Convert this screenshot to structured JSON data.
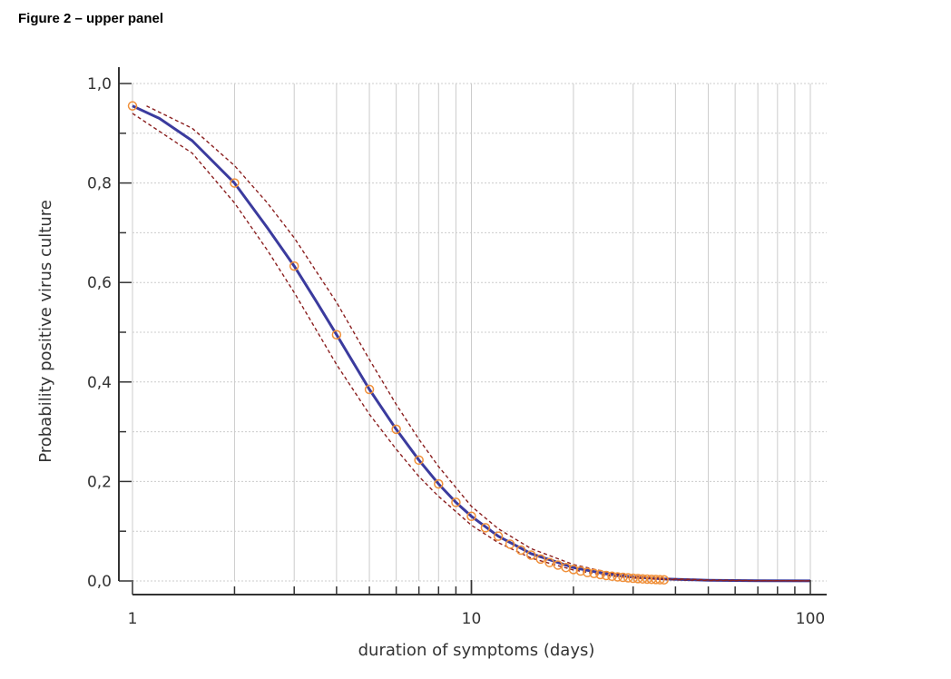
{
  "figure_title": "Figure 2 – upper panel",
  "chart_data": {
    "type": "line",
    "title": "Figure 2 – upper panel",
    "xlabel": "duration of symptoms (days)",
    "ylabel": "Probability positive virus culture",
    "x_scale": "log",
    "xlim": [
      1,
      100
    ],
    "ylim": [
      0,
      1
    ],
    "grid": true,
    "x_ticks": [
      1,
      10,
      100
    ],
    "x_tick_labels": [
      "1",
      "10",
      "100"
    ],
    "y_ticks": [
      0,
      0.2,
      0.4,
      0.6,
      0.8,
      1.0
    ],
    "y_tick_labels": [
      "0,0",
      "0,2",
      "0,4",
      "0,6",
      "0,8",
      "1,0"
    ],
    "colors": {
      "fit": "#3b3b9e",
      "ci": "#8b2020",
      "points": "#f0903a",
      "grid": "#cccccc"
    },
    "series": [
      {
        "type": "line",
        "x": [
          1,
          1.2,
          1.5,
          2,
          2.5,
          3,
          3.5,
          4,
          5,
          6,
          7,
          8,
          9,
          10,
          12,
          15,
          20,
          25,
          30,
          37,
          50,
          70,
          100
        ],
        "values": [
          0.955,
          0.93,
          0.885,
          0.8,
          0.71,
          0.633,
          0.56,
          0.495,
          0.385,
          0.305,
          0.243,
          0.195,
          0.158,
          0.13,
          0.09,
          0.055,
          0.027,
          0.014,
          0.008,
          0.004,
          0.0015,
          0.0005,
          0.0002
        ]
      },
      {
        "type": "line",
        "x": [
          1.1,
          1.5,
          2,
          2.5,
          3,
          4,
          5,
          6,
          7,
          8,
          10,
          12,
          15,
          20,
          25,
          30,
          37,
          50,
          70,
          100
        ],
        "values": [
          0.955,
          0.91,
          0.835,
          0.76,
          0.69,
          0.56,
          0.445,
          0.355,
          0.285,
          0.23,
          0.15,
          0.105,
          0.065,
          0.033,
          0.018,
          0.01,
          0.005,
          0.002,
          0.0007,
          0.0003
        ]
      },
      {
        "type": "line",
        "x": [
          1,
          1.5,
          2,
          2.5,
          3,
          4,
          5,
          6,
          7,
          8,
          10,
          12,
          15,
          20,
          25,
          30,
          37,
          50,
          70,
          100
        ],
        "values": [
          0.94,
          0.86,
          0.76,
          0.665,
          0.58,
          0.435,
          0.335,
          0.265,
          0.21,
          0.17,
          0.112,
          0.077,
          0.046,
          0.022,
          0.011,
          0.006,
          0.003,
          0.001,
          0.0003,
          0.0001
        ]
      },
      {
        "type": "scatter",
        "x": [
          1,
          2,
          3,
          4,
          5,
          6,
          7,
          8,
          9,
          10,
          11,
          12,
          13,
          14,
          15,
          16,
          17,
          18,
          19,
          20,
          21,
          22,
          23,
          24,
          25,
          26,
          27,
          28,
          29,
          30,
          31,
          32,
          33,
          34,
          35,
          36,
          37
        ],
        "values": [
          0.955,
          0.8,
          0.633,
          0.495,
          0.385,
          0.305,
          0.243,
          0.195,
          0.158,
          0.13,
          0.107,
          0.09,
          0.074,
          0.062,
          0.052,
          0.044,
          0.037,
          0.032,
          0.027,
          0.023,
          0.02,
          0.017,
          0.015,
          0.013,
          0.011,
          0.0095,
          0.0083,
          0.0072,
          0.0063,
          0.0055,
          0.0048,
          0.0042,
          0.0037,
          0.0033,
          0.0029,
          0.0026,
          0.0023
        ]
      }
    ]
  }
}
